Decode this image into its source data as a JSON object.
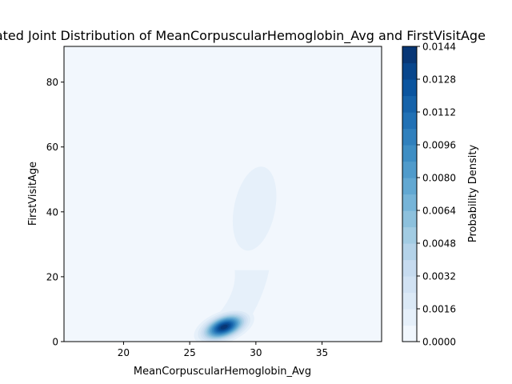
{
  "chart_data": {
    "type": "heatmap",
    "title": "Estimated Joint Distribution of MeanCorpuscularHemoglobin_Avg and FirstVisitAge",
    "xlabel": "MeanCorpuscularHemoglobin_Avg",
    "ylabel": "FirstVisitAge",
    "xlim": [
      15.5,
      39.5
    ],
    "ylim": [
      0,
      91
    ],
    "x_ticks": [
      "20",
      "25",
      "30",
      "35"
    ],
    "x_tick_values": [
      20,
      25,
      30,
      35
    ],
    "y_ticks": [
      "0",
      "20",
      "40",
      "60",
      "80"
    ],
    "y_tick_values": [
      0,
      20,
      40,
      60,
      80
    ],
    "grid": false,
    "colormap": "Blues",
    "colorbar": {
      "label": "Probability Density",
      "ticks": [
        "0.0000",
        "0.0016",
        "0.0032",
        "0.0048",
        "0.0064",
        "0.0080",
        "0.0096",
        "0.0112",
        "0.0128",
        "0.0144"
      ],
      "tick_values": [
        0,
        0.0016,
        0.0032,
        0.0048,
        0.0064,
        0.008,
        0.0096,
        0.0112,
        0.0128,
        0.0144
      ],
      "range": [
        0,
        0.0144
      ],
      "levels": 18
    },
    "density_components": [
      {
        "mean_x": 27.6,
        "mean_y": 4.5,
        "sd_x": 0.95,
        "sd_y": 2.4,
        "rho": 0.45,
        "peak_density": 0.0142
      },
      {
        "mean_x": 29.9,
        "mean_y": 41,
        "sd_x": 1.4,
        "sd_y": 11,
        "rho": 0.3,
        "peak_density": 0.0016
      }
    ],
    "colors": {
      "background": "#f2f7fd",
      "low": "#f7fbff",
      "high": "#08306b"
    }
  }
}
